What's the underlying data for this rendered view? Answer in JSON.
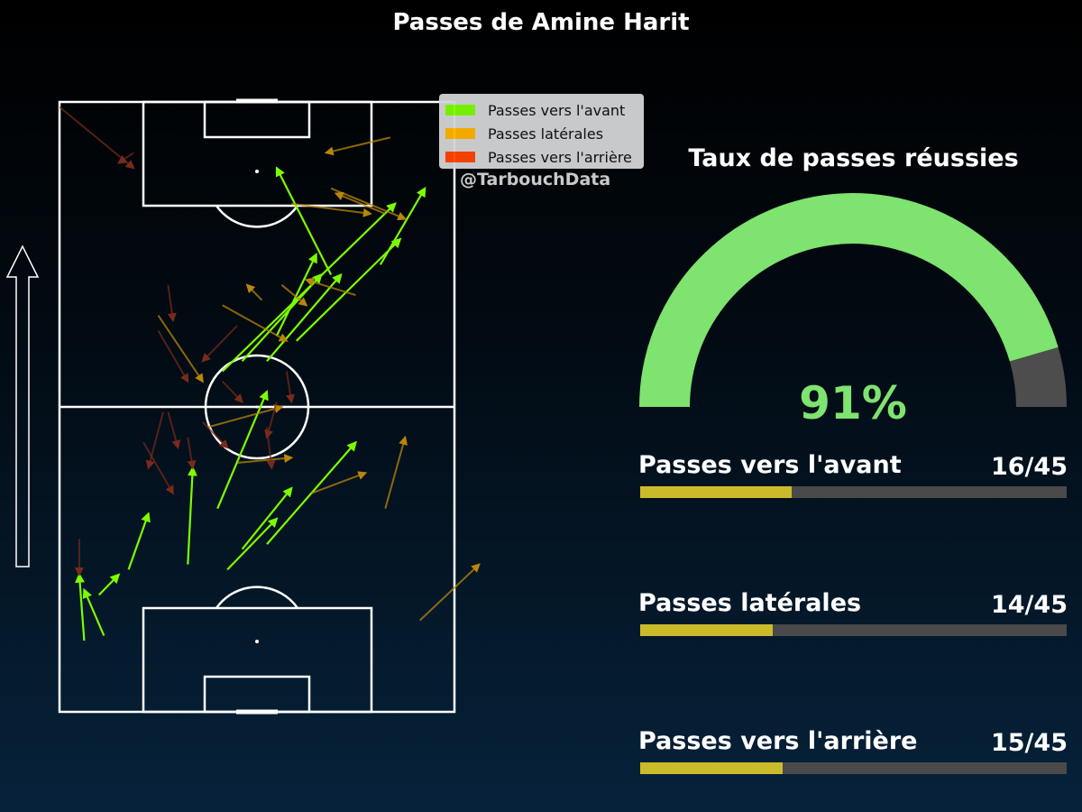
{
  "title": "Passes de Amine Harit",
  "legend": [
    {
      "label": "Passes vers l'avant",
      "color": "#7cfc00"
    },
    {
      "label": "Passes latérales",
      "color": "#ffb300"
    },
    {
      "label": "Passes vers l'arrière",
      "color": "#ff4500"
    }
  ],
  "credit": "@TarbouchData",
  "gauge": {
    "title": "Taux de passes réussies",
    "value_label": "91%",
    "value": 91,
    "color": "#7ee36f",
    "track_color": "#4d4d4d"
  },
  "stats": [
    {
      "label": "Passes vers l'avant",
      "count_label": "16/45",
      "count": 16,
      "total": 45
    },
    {
      "label": "Passes latérales",
      "count_label": "14/45",
      "count": 14,
      "total": 45
    },
    {
      "label": "Passes vers l'arrière",
      "count_label": "15/45",
      "count": 15,
      "total": 45
    }
  ],
  "chart_data": {
    "type": "pass-map",
    "pitch_length": 120,
    "pitch_width": 80,
    "attacking_direction": "up",
    "colors": {
      "forward": "#7cfc00",
      "lateral": "#b8860b",
      "backward": "#7a2a1a"
    },
    "passes": [
      {
        "type": "forward",
        "start": [
          23,
          8
        ],
        "end": [
          27,
          12
        ]
      },
      {
        "type": "forward",
        "start": [
          15,
          9
        ],
        "end": [
          24,
          5
        ]
      },
      {
        "type": "forward",
        "start": [
          14,
          5
        ],
        "end": [
          27,
          4
        ]
      },
      {
        "type": "forward",
        "start": [
          28,
          14
        ],
        "end": [
          39,
          18
        ]
      },
      {
        "type": "forward",
        "start": [
          29,
          26
        ],
        "end": [
          48,
          27
        ]
      },
      {
        "type": "forward",
        "start": [
          28,
          34
        ],
        "end": [
          38,
          44
        ]
      },
      {
        "type": "forward",
        "start": [
          40,
          32
        ],
        "end": [
          63,
          42
        ]
      },
      {
        "type": "forward",
        "start": [
          32,
          37
        ],
        "end": [
          44,
          47
        ]
      },
      {
        "type": "forward",
        "start": [
          33,
          42
        ],
        "end": [
          53,
          60
        ]
      },
      {
        "type": "forward",
        "start": [
          67,
          33
        ],
        "end": [
          100,
          68
        ]
      },
      {
        "type": "forward",
        "start": [
          69,
          37
        ],
        "end": [
          86,
          53
        ]
      },
      {
        "type": "forward",
        "start": [
          69,
          42
        ],
        "end": [
          86,
          57
        ]
      },
      {
        "type": "forward",
        "start": [
          73,
          48
        ],
        "end": [
          93,
          69
        ]
      },
      {
        "type": "forward",
        "start": [
          74,
          44
        ],
        "end": [
          90,
          52
        ]
      },
      {
        "type": "forward",
        "start": [
          86,
          55
        ],
        "end": [
          107,
          44
        ]
      },
      {
        "type": "forward",
        "start": [
          88,
          65
        ],
        "end": [
          103,
          74
        ]
      },
      {
        "type": "lateral",
        "start": [
          40,
          66
        ],
        "end": [
          54,
          70
        ]
      },
      {
        "type": "lateral",
        "start": [
          43,
          51
        ],
        "end": [
          47,
          62
        ]
      },
      {
        "type": "lateral",
        "start": [
          18,
          73
        ],
        "end": [
          29,
          85
        ]
      },
      {
        "type": "lateral",
        "start": [
          49,
          36
        ],
        "end": [
          50,
          47
        ]
      },
      {
        "type": "lateral",
        "start": [
          56,
          30
        ],
        "end": [
          60,
          45
        ]
      },
      {
        "type": "lateral",
        "start": [
          78,
          20
        ],
        "end": [
          65,
          29
        ]
      },
      {
        "type": "lateral",
        "start": [
          80,
          33
        ],
        "end": [
          73,
          46
        ]
      },
      {
        "type": "lateral",
        "start": [
          81,
          41
        ],
        "end": [
          84,
          38
        ]
      },
      {
        "type": "lateral",
        "start": [
          84,
          45
        ],
        "end": [
          80,
          50
        ]
      },
      {
        "type": "lateral",
        "start": [
          82,
          60
        ],
        "end": [
          85,
          50
        ]
      },
      {
        "type": "lateral",
        "start": [
          100,
          47
        ],
        "end": [
          98,
          63
        ]
      },
      {
        "type": "lateral",
        "start": [
          98,
          66
        ],
        "end": [
          102,
          56
        ]
      },
      {
        "type": "lateral",
        "start": [
          103,
          55
        ],
        "end": [
          97,
          70
        ]
      },
      {
        "type": "lateral",
        "start": [
          113,
          67
        ],
        "end": [
          110,
          54
        ]
      },
      {
        "type": "backward",
        "start": [
          119,
          0
        ],
        "end": [
          107,
          15
        ]
      },
      {
        "type": "backward",
        "start": [
          110,
          15
        ],
        "end": [
          108,
          12
        ]
      },
      {
        "type": "backward",
        "start": [
          84,
          22
        ],
        "end": [
          77,
          23
        ]
      },
      {
        "type": "backward",
        "start": [
          76,
          36
        ],
        "end": [
          69,
          29
        ]
      },
      {
        "type": "backward",
        "start": [
          75,
          20
        ],
        "end": [
          65,
          26
        ]
      },
      {
        "type": "backward",
        "start": [
          65,
          33
        ],
        "end": [
          61,
          37
        ]
      },
      {
        "type": "backward",
        "start": [
          67,
          46
        ],
        "end": [
          61,
          47
        ]
      },
      {
        "type": "backward",
        "start": [
          61,
          44
        ],
        "end": [
          54,
          42
        ]
      },
      {
        "type": "backward",
        "start": [
          57,
          29
        ],
        "end": [
          52,
          34
        ]
      },
      {
        "type": "backward",
        "start": [
          59,
          21
        ],
        "end": [
          48,
          18
        ]
      },
      {
        "type": "backward",
        "start": [
          59,
          22
        ],
        "end": [
          52,
          24
        ]
      },
      {
        "type": "backward",
        "start": [
          54,
          26
        ],
        "end": [
          48,
          27
        ]
      },
      {
        "type": "backward",
        "start": [
          56,
          42
        ],
        "end": [
          48,
          43
        ]
      },
      {
        "type": "backward",
        "start": [
          53,
          17
        ],
        "end": [
          43,
          23
        ]
      },
      {
        "type": "backward",
        "start": [
          34,
          4
        ],
        "end": [
          27,
          4
        ]
      }
    ]
  }
}
